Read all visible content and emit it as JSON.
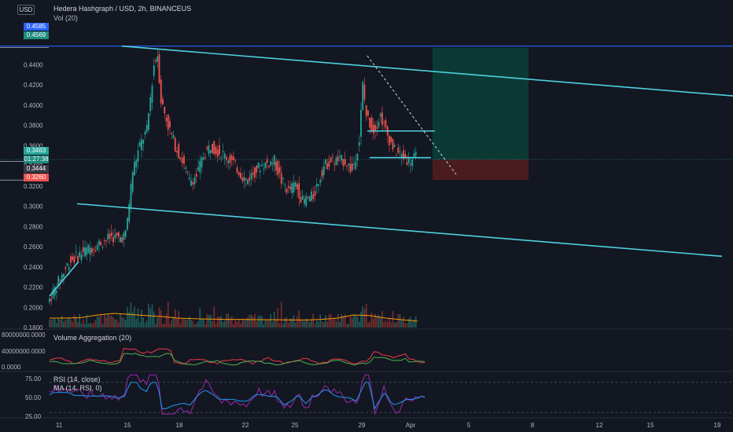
{
  "header": {
    "currency": "USD",
    "symbol": "Hedera Hashgraph / USD, 2h, BINANCEUS",
    "vol_indicator": "Vol (20)",
    "vol_agg_indicator": "Volume Aggregation (20)",
    "rsi_indicator": "RSI (14, close)",
    "rsi_ma_indicator": "MA (14, RSI, 0)"
  },
  "price_tags": {
    "t1": "0.4585",
    "t2": "0.4569",
    "current": "0.3463",
    "countdown": "01:27:38",
    "t3": "0.3444",
    "t4": "0.3260"
  },
  "colors": {
    "background": "#131722",
    "up": "#26a69a",
    "down": "#ef5350",
    "channel": "#4dd0e1",
    "resistance": "#2962ff",
    "target_zone": "#0b3a34",
    "stop_zone": "#4a1c1f",
    "rsi_line": "#9c27b0",
    "rsi_ma": "#2196f3",
    "vol_ma": "#ff9800",
    "agg_green": "#4caf50",
    "agg_red": "#f23645"
  },
  "chart_data": {
    "type": "candlestick",
    "title": "Hedera Hashgraph / USD, 2h, BINANCEUS",
    "ylim": [
      0.18,
      0.48
    ],
    "y_ticks": [
      "0.4400",
      "0.4200",
      "0.4000",
      "0.3800",
      "0.3600",
      "0.3400",
      "0.3200",
      "0.3000",
      "0.2800",
      "0.2600",
      "0.2400",
      "0.2200",
      "0.2000",
      "0.1800"
    ],
    "x_ticks": [
      "11",
      "15",
      "18",
      "22",
      "25",
      "29",
      "Apr",
      "5",
      "8",
      "12",
      "15",
      "19"
    ],
    "price_path": [
      [
        0,
        0.205
      ],
      [
        6,
        0.245
      ],
      [
        10,
        0.255
      ],
      [
        14,
        0.262
      ],
      [
        18,
        0.27
      ],
      [
        20,
        0.268
      ],
      [
        22,
        0.272
      ],
      [
        24,
        0.335
      ],
      [
        26,
        0.36
      ],
      [
        28,
        0.375
      ],
      [
        30,
        0.44
      ],
      [
        31,
        0.45
      ],
      [
        32,
        0.405
      ],
      [
        34,
        0.38
      ],
      [
        36,
        0.36
      ],
      [
        38,
        0.345
      ],
      [
        40,
        0.325
      ],
      [
        42,
        0.33
      ],
      [
        44,
        0.35
      ],
      [
        46,
        0.36
      ],
      [
        48,
        0.355
      ],
      [
        52,
        0.345
      ],
      [
        56,
        0.325
      ],
      [
        60,
        0.34
      ],
      [
        64,
        0.345
      ],
      [
        66,
        0.325
      ],
      [
        68,
        0.315
      ],
      [
        70,
        0.322
      ],
      [
        72,
        0.305
      ],
      [
        75,
        0.31
      ],
      [
        78,
        0.34
      ],
      [
        80,
        0.345
      ],
      [
        84,
        0.345
      ],
      [
        86,
        0.335
      ],
      [
        88,
        0.365
      ],
      [
        89,
        0.42
      ],
      [
        90,
        0.39
      ],
      [
        92,
        0.375
      ],
      [
        94,
        0.39
      ],
      [
        96,
        0.37
      ],
      [
        98,
        0.355
      ],
      [
        100,
        0.35
      ],
      [
        102,
        0.345
      ],
      [
        104,
        0.348
      ]
    ],
    "volume_ma": [
      0.3,
      0.3,
      0.32,
      0.4,
      0.45,
      0.42,
      0.38,
      0.35,
      0.3,
      0.28,
      0.27,
      0.26,
      0.26,
      0.25,
      0.25,
      0.24,
      0.24,
      0.26,
      0.3,
      0.4,
      0.38,
      0.3,
      0.25,
      0.2
    ],
    "volume_aggregation": {
      "ylim": [
        0,
        80000000
      ],
      "y_ticks": [
        "80000000.0000",
        "40000000.0000",
        "0.0000"
      ]
    },
    "rsi": {
      "ylim": [
        25,
        75
      ],
      "y_ticks": [
        "75.00",
        "50.00",
        "25.00"
      ],
      "levels": [
        70,
        30
      ]
    },
    "annotations": {
      "upper_channel": [
        [
          0.4585,
          15
        ],
        [
          0.4092,
          78
        ]
      ],
      "lower_channel": [
        [
          0.3025,
          9
        ],
        [
          0.2505,
          77
        ]
      ],
      "resistance": 0.4585,
      "flag_top": 0.3745,
      "flag_bottom": 0.3481,
      "target_zone": [
        0.3463,
        0.4569
      ],
      "stop_zone": [
        0.326,
        0.3463
      ]
    },
    "grid": false
  }
}
